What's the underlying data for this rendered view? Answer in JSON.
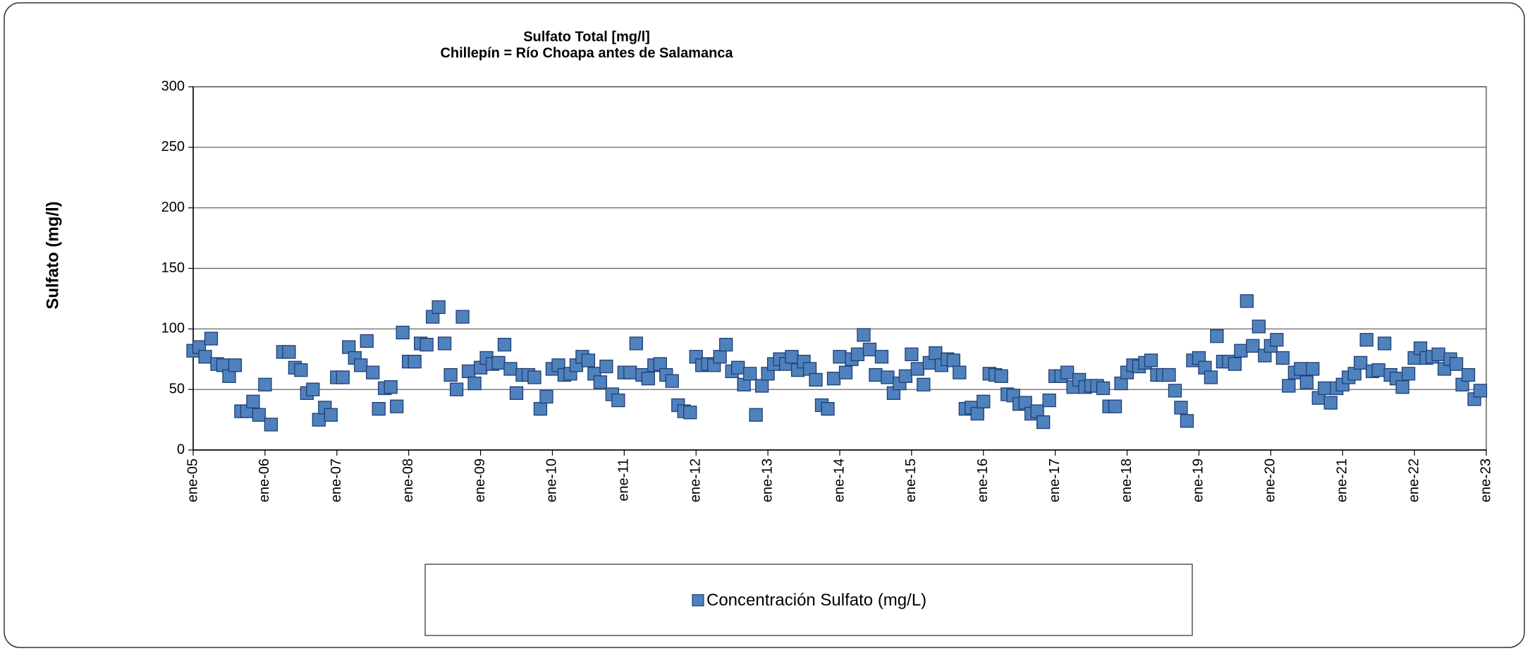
{
  "chart_data": {
    "type": "scatter",
    "title": "Sulfato Total [mg/l]",
    "subtitle": "Chillepín = Río Choapa antes de Salamanca",
    "y_label": "Sulfato (mg/l)",
    "ylim": [
      0,
      300
    ],
    "yticks": [
      0,
      50,
      100,
      150,
      200,
      250,
      300
    ],
    "grid": true,
    "xlim": [
      "2005-01",
      "2023-01"
    ],
    "xticks": [
      {
        "value": "2005-01",
        "label": "ene-05"
      },
      {
        "value": "2006-01",
        "label": "ene-06"
      },
      {
        "value": "2007-01",
        "label": "ene-07"
      },
      {
        "value": "2008-01",
        "label": "ene-08"
      },
      {
        "value": "2009-01",
        "label": "ene-09"
      },
      {
        "value": "2010-01",
        "label": "ene-10"
      },
      {
        "value": "2011-01",
        "label": "ene-11"
      },
      {
        "value": "2012-01",
        "label": "ene-12"
      },
      {
        "value": "2013-01",
        "label": "ene-13"
      },
      {
        "value": "2014-01",
        "label": "ene-14"
      },
      {
        "value": "2015-01",
        "label": "ene-15"
      },
      {
        "value": "2016-01",
        "label": "ene-16"
      },
      {
        "value": "2017-01",
        "label": "ene-17"
      },
      {
        "value": "2018-01",
        "label": "ene-18"
      },
      {
        "value": "2019-01",
        "label": "ene-19"
      },
      {
        "value": "2020-01",
        "label": "ene-20"
      },
      {
        "value": "2021-01",
        "label": "ene-21"
      },
      {
        "value": "2022-01",
        "label": "ene-22"
      },
      {
        "value": "2023-01",
        "label": "ene-23"
      }
    ],
    "legend": "bottom",
    "x": [
      "2005-01",
      "2005-02",
      "2005-03",
      "2005-04",
      "2005-05",
      "2005-06",
      "2005-07",
      "2005-08",
      "2005-09",
      "2005-10",
      "2005-11",
      "2005-12",
      "2006-01",
      "2006-02",
      "2006-04",
      "2006-05",
      "2006-06",
      "2006-07",
      "2006-08",
      "2006-09",
      "2006-10",
      "2006-11",
      "2006-12",
      "2007-01",
      "2007-02",
      "2007-03",
      "2007-04",
      "2007-05",
      "2007-06",
      "2007-07",
      "2007-08",
      "2007-09",
      "2007-10",
      "2007-11",
      "2007-12",
      "2008-01",
      "2008-02",
      "2008-03",
      "2008-04",
      "2008-05",
      "2008-06",
      "2008-07",
      "2008-08",
      "2008-09",
      "2008-10",
      "2008-11",
      "2008-12",
      "2009-01",
      "2009-02",
      "2009-03",
      "2009-04",
      "2009-05",
      "2009-06",
      "2009-07",
      "2009-08",
      "2009-09",
      "2009-10",
      "2009-11",
      "2009-12",
      "2010-01",
      "2010-02",
      "2010-03",
      "2010-04",
      "2010-05",
      "2010-06",
      "2010-07",
      "2010-08",
      "2010-09",
      "2010-10",
      "2010-11",
      "2010-12",
      "2011-01",
      "2011-02",
      "2011-03",
      "2011-04",
      "2011-05",
      "2011-06",
      "2011-07",
      "2011-08",
      "2011-09",
      "2011-10",
      "2011-11",
      "2011-12",
      "2012-01",
      "2012-02",
      "2012-03",
      "2012-04",
      "2012-05",
      "2012-06",
      "2012-07",
      "2012-08",
      "2012-09",
      "2012-10",
      "2012-11",
      "2012-12",
      "2013-01",
      "2013-02",
      "2013-03",
      "2013-04",
      "2013-05",
      "2013-06",
      "2013-07",
      "2013-08",
      "2013-09",
      "2013-10",
      "2013-11",
      "2013-12",
      "2014-01",
      "2014-02",
      "2014-03",
      "2014-04",
      "2014-05",
      "2014-06",
      "2014-07",
      "2014-08",
      "2014-09",
      "2014-10",
      "2014-11",
      "2014-12",
      "2015-01",
      "2015-02",
      "2015-03",
      "2015-04",
      "2015-05",
      "2015-06",
      "2015-07",
      "2015-08",
      "2015-09",
      "2015-10",
      "2015-11",
      "2015-12",
      "2016-01",
      "2016-02",
      "2016-03",
      "2016-04",
      "2016-05",
      "2016-06",
      "2016-07",
      "2016-08",
      "2016-09",
      "2016-10",
      "2016-11",
      "2016-12",
      "2017-01",
      "2017-02",
      "2017-03",
      "2017-04",
      "2017-05",
      "2017-06",
      "2017-07",
      "2017-08",
      "2017-09",
      "2017-10",
      "2017-11",
      "2017-12",
      "2018-01",
      "2018-02",
      "2018-03",
      "2018-04",
      "2018-05",
      "2018-06",
      "2018-07",
      "2018-08",
      "2018-09",
      "2018-10",
      "2018-11",
      "2018-12",
      "2019-01",
      "2019-02",
      "2019-03",
      "2019-04",
      "2019-05",
      "2019-06",
      "2019-07",
      "2019-08",
      "2019-09",
      "2019-10",
      "2019-11",
      "2019-12",
      "2020-01",
      "2020-02",
      "2020-03",
      "2020-04",
      "2020-05",
      "2020-06",
      "2020-07",
      "2020-08",
      "2020-09",
      "2020-10",
      "2020-11",
      "2020-12",
      "2021-01",
      "2021-02",
      "2021-03",
      "2021-04",
      "2021-05",
      "2021-06",
      "2021-07",
      "2021-08",
      "2021-09",
      "2021-10",
      "2021-11",
      "2021-12",
      "2022-01",
      "2022-02",
      "2022-03",
      "2022-04",
      "2022-05",
      "2022-06",
      "2022-07",
      "2022-08",
      "2022-09",
      "2022-10",
      "2022-11",
      "2022-12"
    ],
    "series": [
      {
        "name": "Concentración Sulfato (mg/L)",
        "color": "#4f81bd",
        "values": [
          82,
          85,
          77,
          92,
          71,
          70,
          61,
          70,
          32,
          32,
          40,
          29,
          54,
          21,
          81,
          81,
          68,
          66,
          47,
          50,
          25,
          35,
          29,
          60,
          60,
          85,
          76,
          70,
          90,
          64,
          34,
          51,
          52,
          36,
          97,
          73,
          73,
          88,
          87,
          110,
          118,
          88,
          62,
          50,
          110,
          65,
          55,
          68,
          76,
          71,
          72,
          87,
          67,
          47,
          62,
          62,
          60,
          34,
          44,
          67,
          70,
          62,
          63,
          70,
          77,
          74,
          63,
          56,
          69,
          46,
          41,
          64,
          64,
          88,
          62,
          59,
          70,
          71,
          62,
          57,
          37,
          32,
          31,
          77,
          70,
          71,
          70,
          77,
          87,
          65,
          68,
          54,
          63,
          29,
          53,
          63,
          71,
          75,
          71,
          77,
          66,
          73,
          67,
          58,
          37,
          34,
          59,
          77,
          64,
          75,
          79,
          95,
          83,
          62,
          77,
          60,
          47,
          55,
          61,
          79,
          67,
          54,
          72,
          80,
          70,
          75,
          74,
          64,
          34,
          35,
          30,
          40,
          63,
          62,
          61,
          46,
          45,
          38,
          39,
          30,
          32,
          23,
          41,
          61,
          61,
          64,
          52,
          58,
          52,
          53,
          53,
          51,
          36,
          36,
          55,
          64,
          70,
          69,
          72,
          74,
          62,
          62,
          62,
          49,
          35,
          24,
          74,
          76,
          68,
          60,
          94,
          73,
          73,
          71,
          82,
          123,
          86,
          102,
          78,
          86,
          91,
          76,
          53,
          64,
          67,
          56,
          67,
          43,
          51,
          39,
          51,
          54,
          60,
          63,
          72,
          91,
          65,
          66,
          88,
          62,
          59,
          52,
          63,
          76,
          84,
          76,
          77,
          79,
          67,
          75,
          71,
          54,
          62,
          42,
          49
        ]
      }
    ]
  }
}
